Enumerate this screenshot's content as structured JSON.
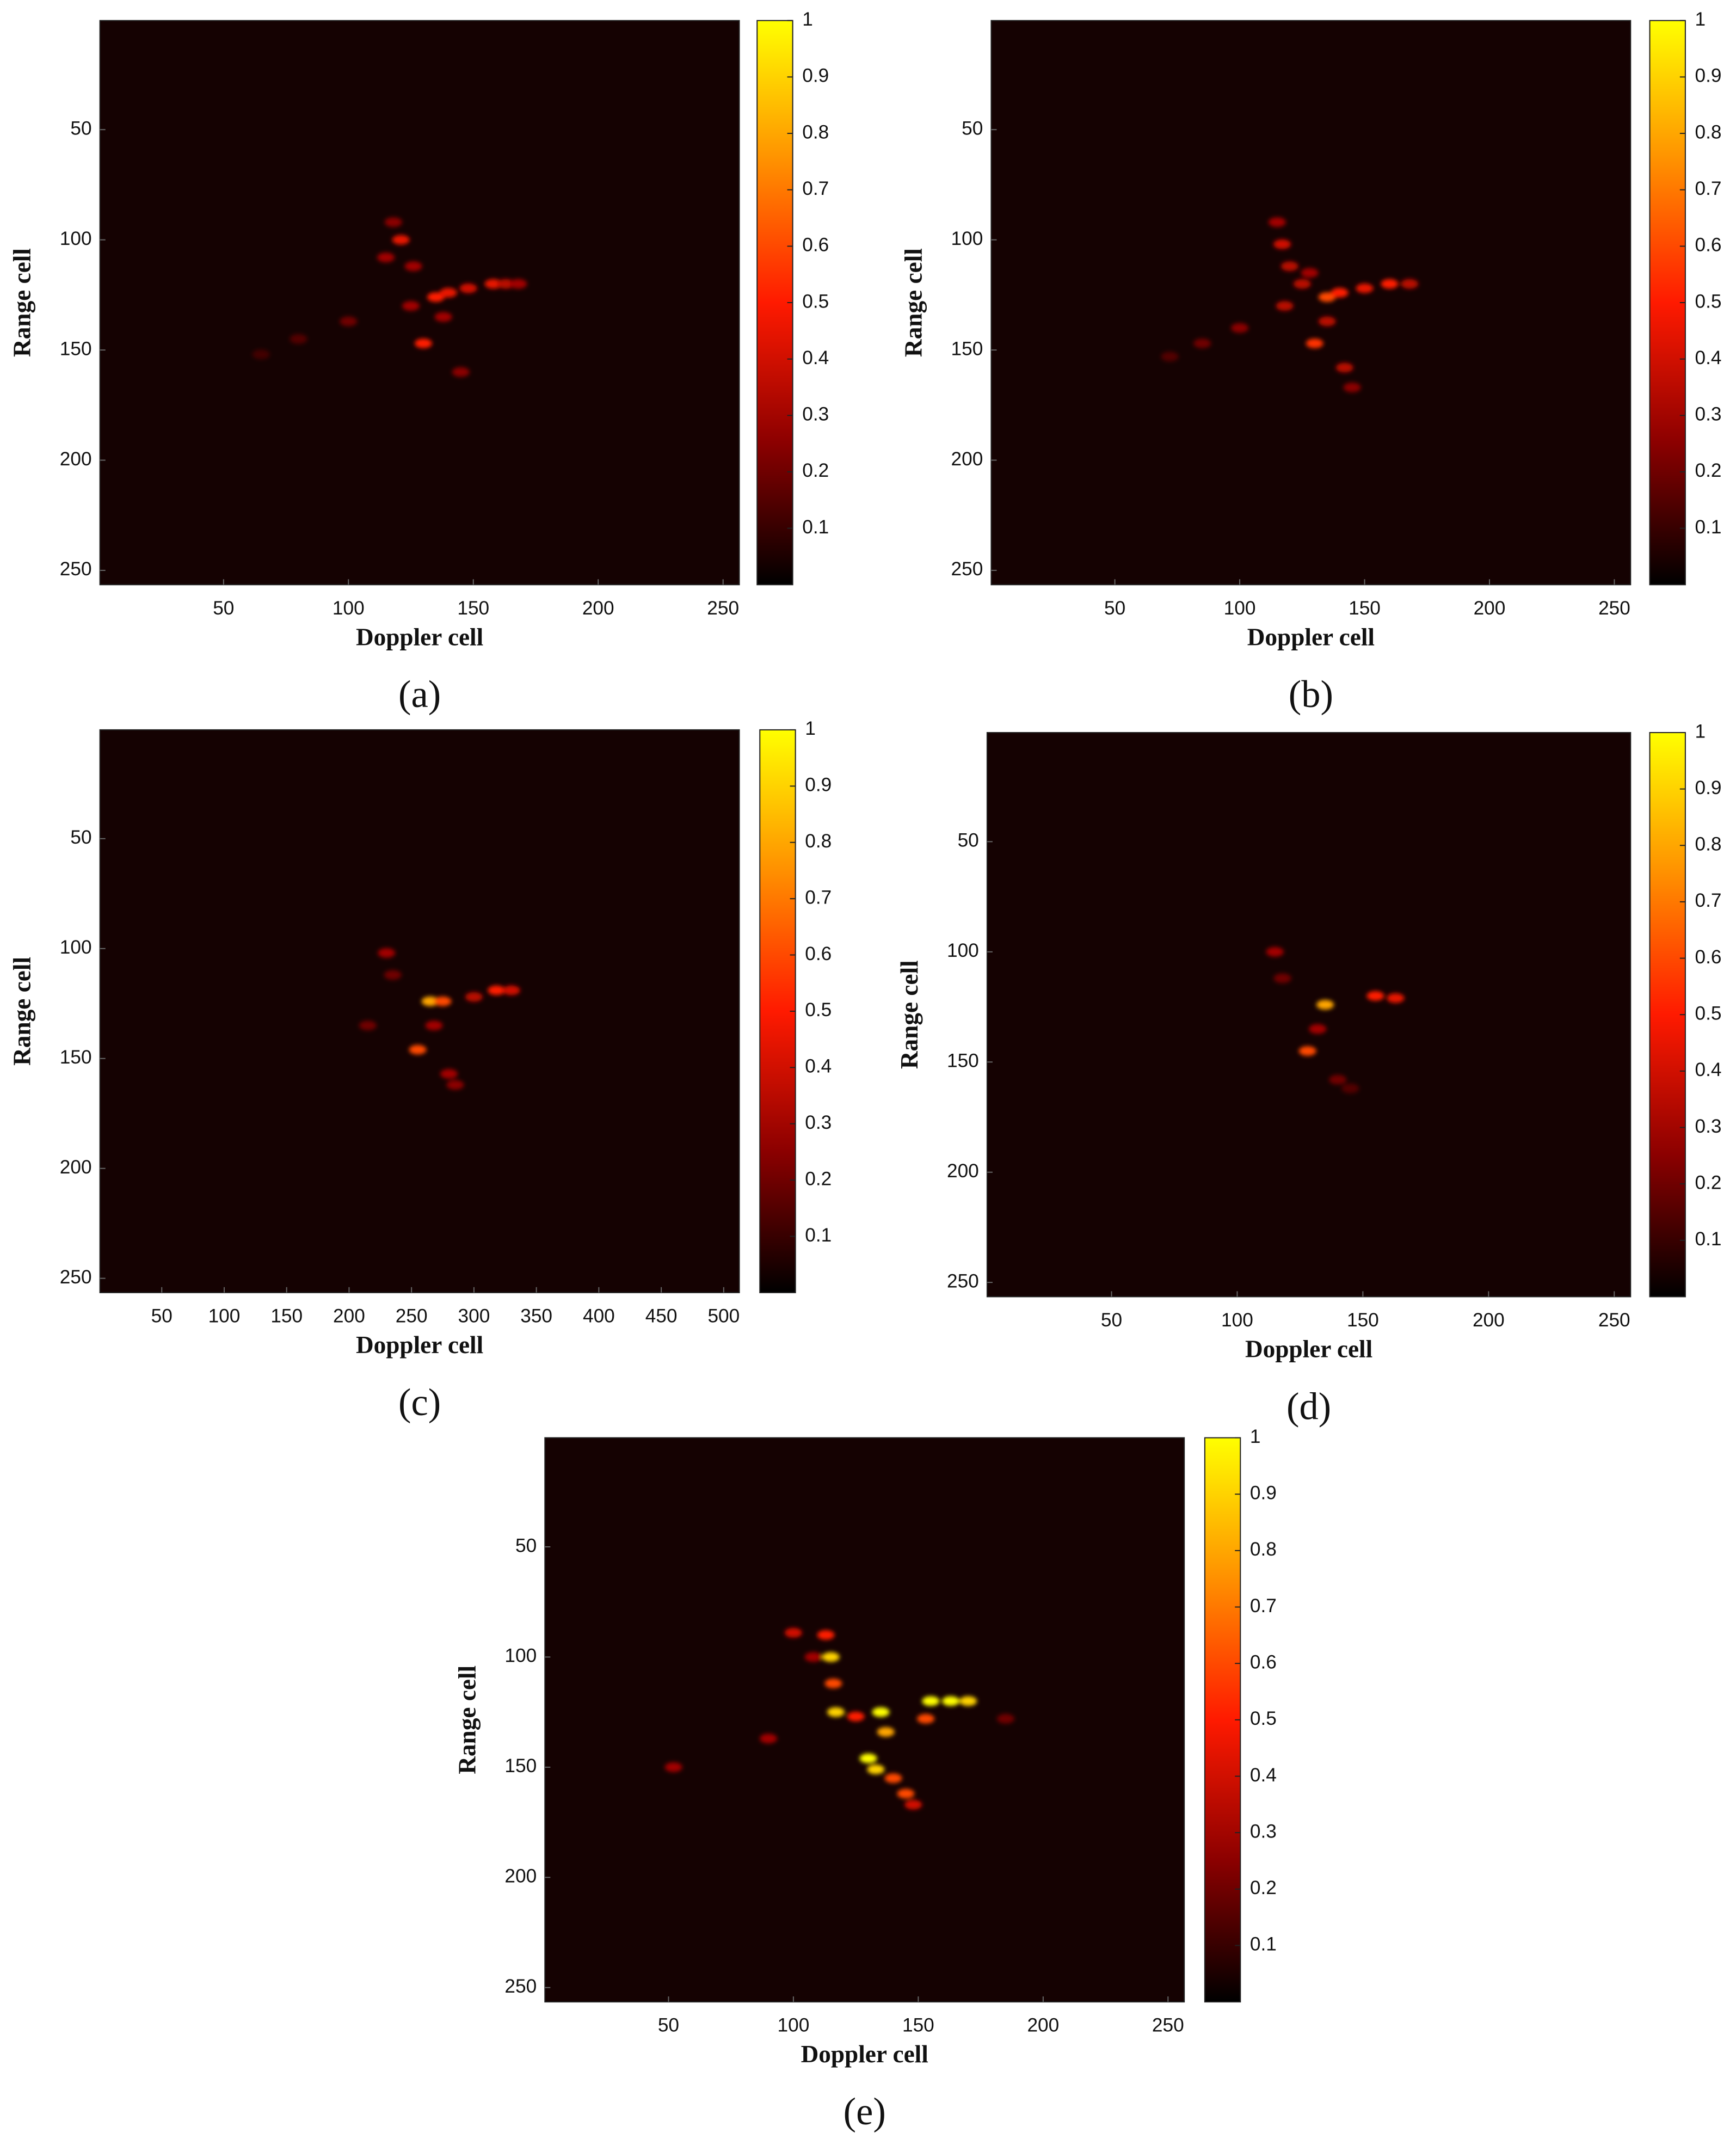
{
  "chart_data": [
    {
      "type": "heatmap",
      "caption": "(a)",
      "xlabel": "Doppler cell",
      "ylabel": "Range cell",
      "xlim": [
        0.5,
        256.5
      ],
      "ylim": [
        256.5,
        0.5
      ],
      "xticks": [
        50,
        100,
        150,
        200,
        250
      ],
      "yticks": [
        50,
        100,
        150,
        200,
        250
      ],
      "clim": [
        0,
        1
      ],
      "cticks": [
        0.1,
        0.2,
        0.3,
        0.4,
        0.5,
        0.6,
        0.7,
        0.8,
        0.9,
        1
      ],
      "colormap": [
        "#000000",
        "#8b0000",
        "#ff1a00",
        "#ff9000",
        "#ffff00"
      ],
      "background": "#150202",
      "points": {
        "x": [
          118,
          121,
          126,
          135,
          140,
          148,
          158,
          163,
          168,
          130,
          138,
          145,
          100,
          80,
          65,
          115,
          125
        ],
        "y": [
          92,
          100,
          112,
          126,
          124,
          122,
          120,
          120,
          120,
          147,
          135,
          160,
          137,
          145,
          152,
          108,
          130
        ],
        "values": [
          0.25,
          0.45,
          0.3,
          0.5,
          0.45,
          0.4,
          0.45,
          0.35,
          0.3,
          0.5,
          0.3,
          0.25,
          0.2,
          0.15,
          0.12,
          0.3,
          0.3
        ]
      }
    },
    {
      "type": "heatmap",
      "caption": "(b)",
      "xlabel": "Doppler cell",
      "ylabel": "Range cell",
      "xlim": [
        0.5,
        256.5
      ],
      "ylim": [
        256.5,
        0.5
      ],
      "xticks": [
        50,
        100,
        150,
        200,
        250
      ],
      "yticks": [
        50,
        100,
        150,
        200,
        250
      ],
      "clim": [
        0,
        1
      ],
      "cticks": [
        0.1,
        0.2,
        0.3,
        0.4,
        0.5,
        0.6,
        0.7,
        0.8,
        0.9,
        1
      ],
      "colormap": [
        "#000000",
        "#8b0000",
        "#ff1a00",
        "#ff9000",
        "#ffff00"
      ],
      "background": "#150202",
      "points": {
        "x": [
          115,
          117,
          120,
          125,
          135,
          140,
          150,
          160,
          168,
          130,
          135,
          142,
          145,
          100,
          85,
          72,
          118,
          128
        ],
        "y": [
          92,
          102,
          112,
          120,
          126,
          124,
          122,
          120,
          120,
          147,
          137,
          158,
          167,
          140,
          147,
          153,
          130,
          115
        ],
        "values": [
          0.3,
          0.4,
          0.35,
          0.35,
          0.6,
          0.5,
          0.45,
          0.5,
          0.35,
          0.55,
          0.35,
          0.35,
          0.25,
          0.25,
          0.2,
          0.15,
          0.35,
          0.3
        ]
      }
    },
    {
      "type": "heatmap",
      "caption": "(c)",
      "xlabel": "Doppler cell",
      "ylabel": "Range cell",
      "xlim": [
        0.5,
        512.5
      ],
      "ylim": [
        256.5,
        0.5
      ],
      "xticks": [
        50,
        100,
        150,
        200,
        250,
        300,
        350,
        400,
        450,
        500
      ],
      "yticks": [
        50,
        100,
        150,
        200,
        250
      ],
      "clim": [
        0,
        1
      ],
      "cticks": [
        0.1,
        0.2,
        0.3,
        0.4,
        0.5,
        0.6,
        0.7,
        0.8,
        0.9,
        1
      ],
      "colormap": [
        "#000000",
        "#8b0000",
        "#ff1a00",
        "#ff9000",
        "#ffff00"
      ],
      "background": "#150202",
      "points": {
        "x": [
          230,
          235,
          265,
          275,
          300,
          318,
          330,
          255,
          268,
          280,
          285,
          215
        ],
        "y": [
          102,
          112,
          124,
          124,
          122,
          119,
          119,
          146,
          135,
          157,
          162,
          135
        ],
        "values": [
          0.3,
          0.2,
          0.8,
          0.6,
          0.35,
          0.5,
          0.4,
          0.6,
          0.3,
          0.3,
          0.25,
          0.2
        ]
      }
    },
    {
      "type": "heatmap",
      "caption": "(d)",
      "xlabel": "Doppler cell",
      "ylabel": "Range cell",
      "xlim": [
        0.5,
        256.5
      ],
      "ylim": [
        256.5,
        0.5
      ],
      "xticks": [
        50,
        100,
        150,
        200,
        250
      ],
      "yticks": [
        50,
        100,
        150,
        200,
        250
      ],
      "clim": [
        0,
        1
      ],
      "cticks": [
        0.1,
        0.2,
        0.3,
        0.4,
        0.5,
        0.6,
        0.7,
        0.8,
        0.9,
        1
      ],
      "colormap": [
        "#000000",
        "#8b0000",
        "#ff1a00",
        "#ff9000",
        "#ffff00"
      ],
      "background": "#150202",
      "points": {
        "x": [
          115,
          118,
          135,
          155,
          163,
          128,
          132,
          140,
          145
        ],
        "y": [
          100,
          112,
          124,
          120,
          121,
          145,
          135,
          158,
          162
        ],
        "values": [
          0.3,
          0.2,
          0.8,
          0.5,
          0.45,
          0.6,
          0.3,
          0.2,
          0.15
        ]
      }
    },
    {
      "type": "heatmap",
      "caption": "(e)",
      "xlabel": "Doppler cell",
      "ylabel": "Range cell",
      "xlim": [
        0.5,
        256.5
      ],
      "ylim": [
        256.5,
        0.5
      ],
      "xticks": [
        50,
        100,
        150,
        200,
        250
      ],
      "yticks": [
        50,
        100,
        150,
        200,
        250
      ],
      "clim": [
        0,
        1
      ],
      "cticks": [
        0.1,
        0.2,
        0.3,
        0.4,
        0.5,
        0.6,
        0.7,
        0.8,
        0.9,
        1
      ],
      "colormap": [
        "#000000",
        "#8b0000",
        "#ff1a00",
        "#ff9000",
        "#ffff00"
      ],
      "background": "#150202",
      "points": {
        "x": [
          100,
          113,
          115,
          116,
          117,
          125,
          135,
          137,
          130,
          133,
          140,
          145,
          148,
          155,
          163,
          170,
          153,
          90,
          52,
          185,
          108
        ],
        "y": [
          89,
          90,
          100,
          112,
          125,
          127,
          125,
          134,
          146,
          151,
          155,
          162,
          167,
          120,
          120,
          120,
          128,
          137,
          150,
          128,
          100
        ],
        "values": [
          0.4,
          0.5,
          0.9,
          0.6,
          0.9,
          0.5,
          1,
          0.8,
          1,
          0.9,
          0.6,
          0.6,
          0.4,
          1,
          1,
          0.9,
          0.6,
          0.3,
          0.3,
          0.2,
          0.3
        ]
      }
    }
  ]
}
